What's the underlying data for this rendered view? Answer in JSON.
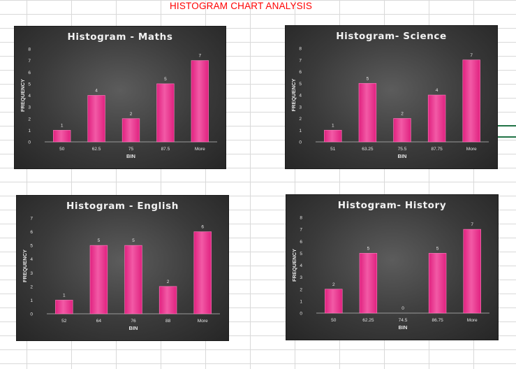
{
  "page_title": "HISTOGRAM CHART ANALYSIS",
  "colors": {
    "bar": "#e0217f",
    "bar_light": "#f25aa6",
    "title": "#ff0000",
    "chart_bg": "#3a3a3a",
    "text": "#e6e6e6"
  },
  "chart_data": [
    {
      "type": "bar",
      "title": "Histogram - Maths",
      "xlabel": "BIN",
      "ylabel": "FREQUENCY",
      "categories": [
        "50",
        "62.5",
        "75",
        "87.5",
        "More"
      ],
      "values": [
        1,
        4,
        2,
        5,
        7
      ],
      "ylim": [
        0,
        8
      ],
      "yticks": [
        0,
        1,
        2,
        3,
        4,
        5,
        6,
        7,
        8
      ],
      "data_labels": true,
      "grid": false,
      "legend": "none"
    },
    {
      "type": "bar",
      "title": "Histogram- Science",
      "xlabel": "BIN",
      "ylabel": "FREQUENCY",
      "categories": [
        "51",
        "63.25",
        "75.5",
        "87.75",
        "More"
      ],
      "values": [
        1,
        5,
        2,
        4,
        7
      ],
      "ylim": [
        0,
        8
      ],
      "yticks": [
        0,
        1,
        2,
        3,
        4,
        5,
        6,
        7,
        8
      ],
      "data_labels": true,
      "grid": false,
      "legend": "none"
    },
    {
      "type": "bar",
      "title": "Histogram - English",
      "xlabel": "BIN",
      "ylabel": "FREQUENCY",
      "categories": [
        "52",
        "64",
        "76",
        "88",
        "More"
      ],
      "values": [
        1,
        5,
        5,
        2,
        6
      ],
      "ylim": [
        0,
        7
      ],
      "yticks": [
        0,
        1,
        2,
        3,
        4,
        5,
        6,
        7
      ],
      "data_labels": true,
      "grid": false,
      "legend": "none"
    },
    {
      "type": "bar",
      "title": "Histogram- History",
      "xlabel": "BIN",
      "ylabel": "FREQUENCY",
      "categories": [
        "50",
        "62.25",
        "74.5",
        "86.75",
        "More"
      ],
      "values": [
        2,
        5,
        0,
        5,
        7
      ],
      "ylim": [
        0,
        8
      ],
      "yticks": [
        0,
        1,
        2,
        3,
        4,
        5,
        6,
        7,
        8
      ],
      "data_labels": true,
      "grid": false,
      "legend": "none"
    }
  ]
}
